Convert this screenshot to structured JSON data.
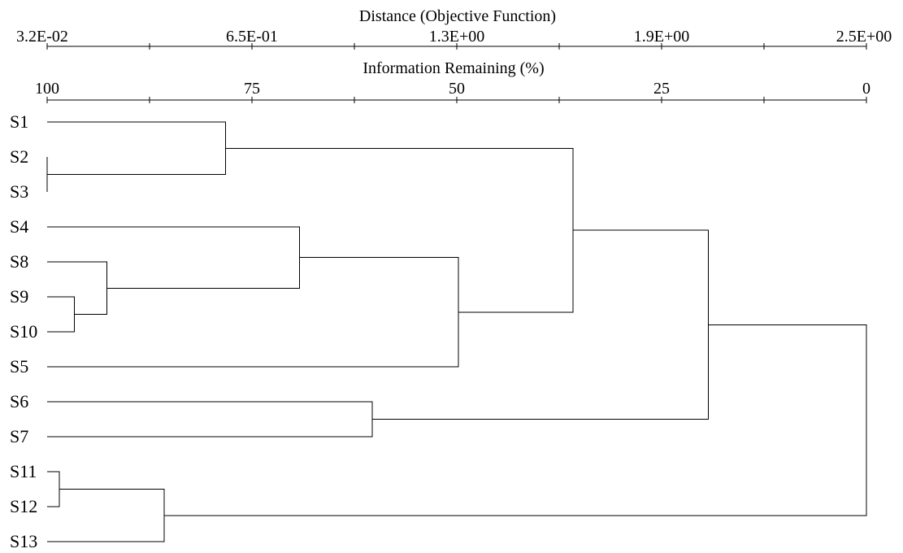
{
  "top_axis": {
    "title": "Distance (Objective Function)",
    "tick_labels": [
      "3.2E-02",
      "6.5E-01",
      "1.3E+00",
      "1.9E+00",
      "2.5E+00"
    ]
  },
  "second_axis": {
    "title": "Information Remaining (%)",
    "tick_labels": [
      "100",
      "75",
      "50",
      "25",
      "0"
    ]
  },
  "chart_data": {
    "type": "dendrogram",
    "scale": "information_remaining_percent",
    "xlim": [
      100,
      0
    ],
    "leaves": [
      "S1",
      "S2",
      "S3",
      "S4",
      "S8",
      "S9",
      "S10",
      "S5",
      "S6",
      "S7",
      "S11",
      "S12",
      "S13"
    ],
    "merges": [
      {
        "id": "m1",
        "children": [
          "S2",
          "S3"
        ],
        "height": 100.0
      },
      {
        "id": "m2",
        "children": [
          "S11",
          "S12"
        ],
        "height": 98.5
      },
      {
        "id": "m3",
        "children": [
          "S9",
          "S10"
        ],
        "height": 96.7
      },
      {
        "id": "m4",
        "children": [
          "S8",
          "m3"
        ],
        "height": 92.7
      },
      {
        "id": "m5",
        "children": [
          "S13",
          "m2"
        ],
        "height": 85.7
      },
      {
        "id": "m6",
        "children": [
          "S1",
          "m1"
        ],
        "height": 78.2
      },
      {
        "id": "m7",
        "children": [
          "S4",
          "m4"
        ],
        "height": 69.2
      },
      {
        "id": "m8",
        "children": [
          "S6",
          "S7"
        ],
        "height": 60.3
      },
      {
        "id": "m9",
        "children": [
          "S5",
          "m7"
        ],
        "height": 49.8
      },
      {
        "id": "m10",
        "children": [
          "m6",
          "m9"
        ],
        "height": 35.8
      },
      {
        "id": "m11",
        "children": [
          "m10",
          "m8"
        ],
        "height": 19.3
      },
      {
        "id": "m12",
        "children": [
          "m11",
          "m5"
        ],
        "height": 0.0
      }
    ]
  }
}
